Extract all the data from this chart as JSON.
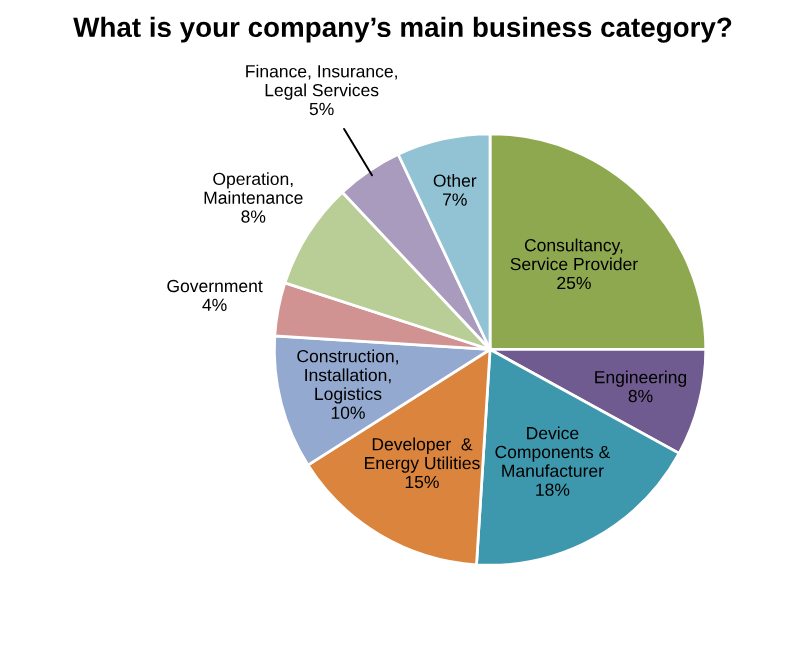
{
  "chart_data": {
    "type": "pie",
    "title": "What is your company’s main business category?",
    "categories": [
      "Consultancy,\nService Provider",
      "Engineering",
      "Device\nComponents &\nManufacturer",
      "Developer  &\nEnergy Utilities",
      "Construction,\nInstallation,\nLogistics",
      "Government",
      "Operation,\nMaintenance",
      "Finance, Insurance,\nLegal Services",
      "Other"
    ],
    "values": [
      25,
      8,
      18,
      15,
      10,
      4,
      8,
      5,
      7
    ],
    "value_labels": [
      "25%",
      "8%",
      "18%",
      "15%",
      "10%",
      "4%",
      "8%",
      "5%",
      "7%"
    ],
    "colors": [
      "#8ea84f",
      "#705b91",
      "#3d97ad",
      "#db843d",
      "#93a9cf",
      "#d19392",
      "#b9cd96",
      "#a99bbd",
      "#92c3d4"
    ],
    "legend": false
  }
}
